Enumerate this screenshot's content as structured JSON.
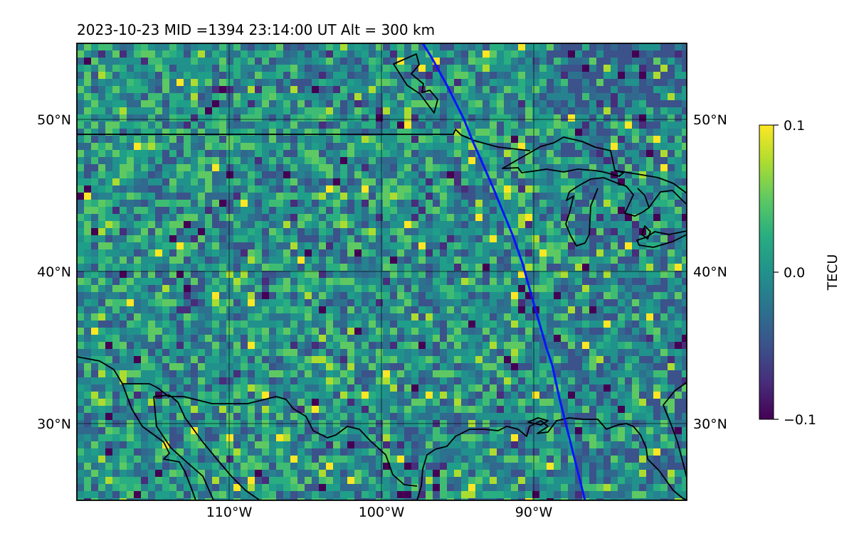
{
  "title": "2023-10-23  MID =1394    23:14:00  UT  Alt = 300 km",
  "map": {
    "lon_range": [
      -120,
      -80
    ],
    "lat_range": [
      25,
      55
    ],
    "lat_ticks": [
      {
        "value": 50,
        "label": "50°N"
      },
      {
        "value": 40,
        "label": "40°N"
      },
      {
        "value": 30,
        "label": "30°N"
      }
    ],
    "lon_ticks": [
      {
        "value": -110,
        "label": "110°W"
      },
      {
        "value": -100,
        "label": "100°W"
      },
      {
        "value": -90,
        "label": "90°W"
      }
    ],
    "gridlines": true,
    "field": "perturbation TEC map (viridis)",
    "satellite_track_color": "#0a14ff",
    "coastline_color": "#000000"
  },
  "colorbar": {
    "label": "TECU",
    "min": -0.1,
    "max": 0.1,
    "ticks": [
      {
        "value": 0.1,
        "label": "0.1"
      },
      {
        "value": 0.0,
        "label": "0.0"
      },
      {
        "value": -0.1,
        "label": "−0.1"
      }
    ],
    "colormap": "viridis"
  }
}
